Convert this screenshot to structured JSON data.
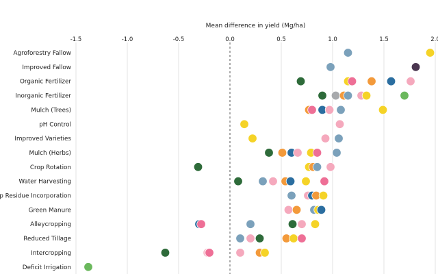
{
  "chart_data": {
    "type": "scatter",
    "title": "",
    "xlabel": "Mean difference in yield (Mg/ha)",
    "ylabel": "",
    "xlim": [
      -1.5,
      2.0
    ],
    "xticks": [
      "-1.5",
      "-1.0",
      "-0.5",
      "0.0",
      "0.5",
      "1.0",
      "1.5",
      "2.0"
    ],
    "xtick_values": [
      -1.5,
      -1.0,
      -0.5,
      0.0,
      0.5,
      1.0,
      1.5,
      2.0
    ],
    "grid": "vertical",
    "legend": "none",
    "colors": {
      "yellow": "#f5d327",
      "blue": "#7ba1bb",
      "dark_purple": "#4a3650",
      "dark_green": "#2e6b3a",
      "orange": "#f39a3b",
      "pink": "#ee6f96",
      "light_pink": "#f5a9bd",
      "navy": "#2b6ea0",
      "light_green": "#6bb85d",
      "grey": "#a7a9ac",
      "pale_pink": "#f7bfcd"
    },
    "categories": [
      "Agroforestry Fallow",
      "Improved Fallow",
      "Organic Fertilizer",
      "Inorganic Fertilizer",
      "Mulch (Trees)",
      "pH Control",
      "Improved Varieties",
      "Mulch (Herbs)",
      "Crop Rotation",
      "Water Harvesting",
      "Crop Residue Incorporation",
      "Green Manure",
      "Alleycropping",
      "Reduced Tillage",
      "Intercropping",
      "Deficit Irrigation"
    ],
    "points": [
      {
        "category": "Agroforestry Fallow",
        "x": 1.15,
        "color": "blue"
      },
      {
        "category": "Agroforestry Fallow",
        "x": 1.95,
        "color": "yellow"
      },
      {
        "category": "Improved Fallow",
        "x": 0.98,
        "color": "blue"
      },
      {
        "category": "Improved Fallow",
        "x": 1.81,
        "color": "dark_purple"
      },
      {
        "category": "Organic Fertilizer",
        "x": 0.69,
        "color": "dark_green"
      },
      {
        "category": "Organic Fertilizer",
        "x": 1.15,
        "color": "yellow"
      },
      {
        "category": "Organic Fertilizer",
        "x": 1.19,
        "color": "pink"
      },
      {
        "category": "Organic Fertilizer",
        "x": 1.38,
        "color": "orange"
      },
      {
        "category": "Organic Fertilizer",
        "x": 1.57,
        "color": "navy"
      },
      {
        "category": "Organic Fertilizer",
        "x": 1.76,
        "color": "light_pink"
      },
      {
        "category": "Inorganic Fertilizer",
        "x": 0.9,
        "color": "dark_green"
      },
      {
        "category": "Inorganic Fertilizer",
        "x": 1.03,
        "color": "grey"
      },
      {
        "category": "Inorganic Fertilizer",
        "x": 1.11,
        "color": "orange"
      },
      {
        "category": "Inorganic Fertilizer",
        "x": 1.15,
        "color": "blue"
      },
      {
        "category": "Inorganic Fertilizer",
        "x": 1.28,
        "color": "light_pink"
      },
      {
        "category": "Inorganic Fertilizer",
        "x": 1.33,
        "color": "yellow"
      },
      {
        "category": "Inorganic Fertilizer",
        "x": 1.7,
        "color": "light_green"
      },
      {
        "category": "Mulch (Trees)",
        "x": 0.77,
        "color": "orange"
      },
      {
        "category": "Mulch (Trees)",
        "x": 0.8,
        "color": "pink"
      },
      {
        "category": "Mulch (Trees)",
        "x": 0.9,
        "color": "navy"
      },
      {
        "category": "Mulch (Trees)",
        "x": 0.97,
        "color": "light_pink"
      },
      {
        "category": "Mulch (Trees)",
        "x": 1.08,
        "color": "blue"
      },
      {
        "category": "Mulch (Trees)",
        "x": 1.49,
        "color": "yellow"
      },
      {
        "category": "pH Control",
        "x": 0.14,
        "color": "yellow"
      },
      {
        "category": "pH Control",
        "x": 1.07,
        "color": "light_pink"
      },
      {
        "category": "Improved Varieties",
        "x": 0.22,
        "color": "yellow"
      },
      {
        "category": "Improved Varieties",
        "x": 0.93,
        "color": "light_pink"
      },
      {
        "category": "Improved Varieties",
        "x": 1.06,
        "color": "blue"
      },
      {
        "category": "Mulch (Herbs)",
        "x": 0.38,
        "color": "dark_green"
      },
      {
        "category": "Mulch (Herbs)",
        "x": 0.51,
        "color": "orange"
      },
      {
        "category": "Mulch (Herbs)",
        "x": 0.6,
        "color": "navy"
      },
      {
        "category": "Mulch (Herbs)",
        "x": 0.66,
        "color": "light_pink"
      },
      {
        "category": "Mulch (Herbs)",
        "x": 0.79,
        "color": "yellow"
      },
      {
        "category": "Mulch (Herbs)",
        "x": 0.85,
        "color": "pink"
      },
      {
        "category": "Mulch (Herbs)",
        "x": 1.04,
        "color": "blue"
      },
      {
        "category": "Crop Rotation",
        "x": -0.31,
        "color": "dark_green"
      },
      {
        "category": "Crop Rotation",
        "x": 0.77,
        "color": "yellow"
      },
      {
        "category": "Crop Rotation",
        "x": 0.81,
        "color": "orange"
      },
      {
        "category": "Crop Rotation",
        "x": 0.85,
        "color": "blue"
      },
      {
        "category": "Crop Rotation",
        "x": 0.98,
        "color": "light_pink"
      },
      {
        "category": "Water Harvesting",
        "x": 0.08,
        "color": "dark_green"
      },
      {
        "category": "Water Harvesting",
        "x": 0.32,
        "color": "blue"
      },
      {
        "category": "Water Harvesting",
        "x": 0.42,
        "color": "light_pink"
      },
      {
        "category": "Water Harvesting",
        "x": 0.54,
        "color": "orange"
      },
      {
        "category": "Water Harvesting",
        "x": 0.59,
        "color": "navy"
      },
      {
        "category": "Water Harvesting",
        "x": 0.74,
        "color": "yellow"
      },
      {
        "category": "Water Harvesting",
        "x": 0.92,
        "color": "pink"
      },
      {
        "category": "Crop Residue Incorporation",
        "x": 0.6,
        "color": "blue"
      },
      {
        "category": "Crop Residue Incorporation",
        "x": 0.76,
        "color": "light_pink"
      },
      {
        "category": "Crop Residue Incorporation",
        "x": 0.8,
        "color": "navy"
      },
      {
        "category": "Crop Residue Incorporation",
        "x": 0.84,
        "color": "orange"
      },
      {
        "category": "Crop Residue Incorporation",
        "x": 0.91,
        "color": "yellow"
      },
      {
        "category": "Green Manure",
        "x": 0.57,
        "color": "light_pink"
      },
      {
        "category": "Green Manure",
        "x": 0.65,
        "color": "orange"
      },
      {
        "category": "Green Manure",
        "x": 0.82,
        "color": "blue"
      },
      {
        "category": "Green Manure",
        "x": 0.86,
        "color": "yellow"
      },
      {
        "category": "Green Manure",
        "x": 0.89,
        "color": "navy"
      },
      {
        "category": "Alleycropping",
        "x": -0.3,
        "color": "navy"
      },
      {
        "category": "Alleycropping",
        "x": -0.28,
        "color": "pink"
      },
      {
        "category": "Alleycropping",
        "x": 0.2,
        "color": "blue"
      },
      {
        "category": "Alleycropping",
        "x": 0.61,
        "color": "dark_green"
      },
      {
        "category": "Alleycropping",
        "x": 0.7,
        "color": "light_pink"
      },
      {
        "category": "Alleycropping",
        "x": 0.83,
        "color": "yellow"
      },
      {
        "category": "Reduced Tillage",
        "x": 0.1,
        "color": "blue"
      },
      {
        "category": "Reduced Tillage",
        "x": 0.2,
        "color": "light_pink"
      },
      {
        "category": "Reduced Tillage",
        "x": 0.29,
        "color": "dark_green"
      },
      {
        "category": "Reduced Tillage",
        "x": 0.55,
        "color": "orange"
      },
      {
        "category": "Reduced Tillage",
        "x": 0.62,
        "color": "yellow"
      },
      {
        "category": "Reduced Tillage",
        "x": 0.7,
        "color": "pink"
      },
      {
        "category": "Intercropping",
        "x": -0.63,
        "color": "dark_green"
      },
      {
        "category": "Intercropping",
        "x": -0.22,
        "color": "pale_pink"
      },
      {
        "category": "Intercropping",
        "x": -0.2,
        "color": "pink"
      },
      {
        "category": "Intercropping",
        "x": 0.1,
        "color": "light_pink"
      },
      {
        "category": "Intercropping",
        "x": 0.29,
        "color": "orange"
      },
      {
        "category": "Intercropping",
        "x": 0.34,
        "color": "yellow"
      },
      {
        "category": "Deficit Irrigation",
        "x": -1.38,
        "color": "light_green"
      }
    ]
  }
}
